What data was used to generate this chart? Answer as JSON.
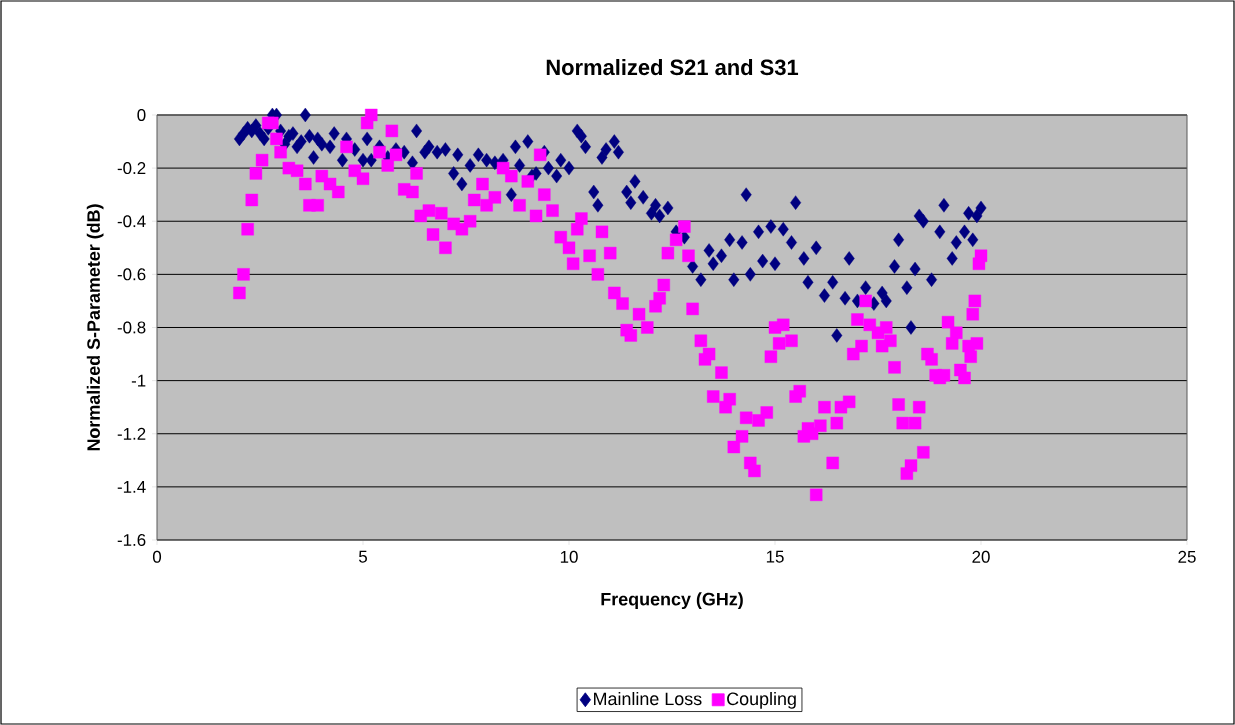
{
  "chart_data": {
    "type": "scatter",
    "title": "Normalized S21 and S31",
    "xlabel": "Frequency (GHz)",
    "ylabel": "Normalized S-Parameter (dB)",
    "xlim": [
      0,
      25
    ],
    "xticks": [
      0,
      5,
      10,
      15,
      20,
      25
    ],
    "ylim": [
      -1.6,
      0
    ],
    "yticks": [
      -1.6,
      -1.4,
      -1.2,
      -1,
      -0.8,
      -0.6,
      -0.4,
      -0.2,
      0
    ],
    "grid": "y",
    "legend": "bottom",
    "series": [
      {
        "name": "Mainline Loss",
        "color": "#000080",
        "marker": "diamond",
        "x": [
          2.0,
          2.1,
          2.2,
          2.3,
          2.4,
          2.5,
          2.6,
          2.7,
          2.8,
          2.9,
          3.0,
          3.1,
          3.2,
          3.3,
          3.4,
          3.5,
          3.6,
          3.7,
          3.8,
          3.9,
          4.0,
          4.2,
          4.3,
          4.5,
          4.6,
          4.8,
          5.0,
          5.1,
          5.2,
          5.4,
          5.6,
          5.8,
          6.0,
          6.2,
          6.3,
          6.5,
          6.6,
          6.8,
          7.0,
          7.2,
          7.3,
          7.4,
          7.6,
          7.8,
          8.0,
          8.2,
          8.4,
          8.6,
          8.7,
          8.8,
          9.0,
          9.1,
          9.2,
          9.4,
          9.5,
          9.7,
          9.8,
          10.0,
          10.2,
          10.3,
          10.4,
          10.6,
          10.7,
          10.8,
          10.9,
          11.1,
          11.2,
          11.4,
          11.5,
          11.6,
          11.8,
          12.0,
          12.1,
          12.2,
          12.4,
          12.6,
          12.8,
          13.0,
          13.2,
          13.4,
          13.5,
          13.7,
          13.9,
          14.0,
          14.2,
          14.3,
          14.4,
          14.6,
          14.7,
          14.9,
          15.0,
          15.2,
          15.4,
          15.5,
          15.7,
          15.8,
          16.0,
          16.2,
          16.4,
          16.5,
          16.7,
          16.8,
          17.0,
          17.2,
          17.4,
          17.6,
          17.7,
          17.9,
          18.0,
          18.2,
          18.3,
          18.4,
          18.5,
          18.6,
          18.8,
          19.0,
          19.1,
          19.3,
          19.4,
          19.6,
          19.7,
          19.8,
          19.9,
          20.0
        ],
        "values": [
          -0.09,
          -0.07,
          -0.05,
          -0.06,
          -0.04,
          -0.07,
          -0.09,
          -0.05,
          0.0,
          0.0,
          -0.06,
          -0.11,
          -0.08,
          -0.07,
          -0.12,
          -0.1,
          0.0,
          -0.08,
          -0.16,
          -0.09,
          -0.11,
          -0.12,
          -0.07,
          -0.17,
          -0.09,
          -0.13,
          -0.17,
          -0.09,
          -0.17,
          -0.12,
          -0.16,
          -0.13,
          -0.14,
          -0.18,
          -0.06,
          -0.14,
          -0.12,
          -0.14,
          -0.13,
          -0.22,
          -0.15,
          -0.26,
          -0.19,
          -0.15,
          -0.17,
          -0.18,
          -0.17,
          -0.3,
          -0.12,
          -0.19,
          -0.1,
          -0.23,
          -0.22,
          -0.14,
          -0.2,
          -0.23,
          -0.17,
          -0.2,
          -0.06,
          -0.08,
          -0.12,
          -0.29,
          -0.34,
          -0.16,
          -0.13,
          -0.1,
          -0.14,
          -0.29,
          -0.33,
          -0.25,
          -0.31,
          -0.37,
          -0.34,
          -0.38,
          -0.35,
          -0.44,
          -0.46,
          -0.57,
          -0.62,
          -0.51,
          -0.56,
          -0.53,
          -0.47,
          -0.62,
          -0.48,
          -0.3,
          -0.6,
          -0.44,
          -0.55,
          -0.42,
          -0.56,
          -0.43,
          -0.48,
          -0.33,
          -0.54,
          -0.63,
          -0.5,
          -0.68,
          -0.63,
          -0.83,
          -0.69,
          -0.54,
          -0.7,
          -0.65,
          -0.71,
          -0.67,
          -0.7,
          -0.57,
          -0.47,
          -0.65,
          -0.8,
          -0.58,
          -0.38,
          -0.4,
          -0.62,
          -0.44,
          -0.34,
          -0.54,
          -0.48,
          -0.44,
          -0.37,
          -0.47,
          -0.38,
          -0.35
        ]
      },
      {
        "name": "Coupling",
        "color": "#ff00ff",
        "marker": "square",
        "x": [
          2.0,
          2.1,
          2.2,
          2.3,
          2.4,
          2.55,
          2.7,
          2.8,
          2.9,
          3.0,
          3.2,
          3.4,
          3.6,
          3.7,
          3.9,
          4.0,
          4.2,
          4.4,
          4.6,
          4.8,
          5.0,
          5.1,
          5.2,
          5.4,
          5.6,
          5.7,
          5.8,
          6.0,
          6.2,
          6.3,
          6.4,
          6.6,
          6.7,
          6.9,
          7.0,
          7.2,
          7.4,
          7.6,
          7.7,
          7.9,
          8.0,
          8.2,
          8.4,
          8.6,
          8.8,
          9.0,
          9.2,
          9.3,
          9.4,
          9.6,
          9.8,
          10.0,
          10.1,
          10.2,
          10.3,
          10.5,
          10.7,
          10.8,
          11.0,
          11.1,
          11.3,
          11.4,
          11.5,
          11.7,
          11.9,
          12.1,
          12.2,
          12.3,
          12.4,
          12.6,
          12.8,
          12.9,
          13.0,
          13.2,
          13.3,
          13.4,
          13.5,
          13.7,
          13.8,
          13.9,
          14.0,
          14.2,
          14.3,
          14.4,
          14.5,
          14.6,
          14.8,
          14.9,
          15.0,
          15.1,
          15.2,
          15.4,
          15.5,
          15.6,
          15.7,
          15.8,
          15.9,
          16.0,
          16.1,
          16.2,
          16.4,
          16.5,
          16.6,
          16.8,
          16.9,
          17.0,
          17.1,
          17.2,
          17.3,
          17.5,
          17.6,
          17.7,
          17.8,
          17.9,
          18.0,
          18.1,
          18.2,
          18.3,
          18.4,
          18.5,
          18.6,
          18.7,
          18.8,
          18.9,
          19.0,
          19.1,
          19.2,
          19.3,
          19.4,
          19.5,
          19.6,
          19.7,
          19.75,
          19.8,
          19.85,
          19.9,
          19.95,
          20.0
        ],
        "values": [
          -0.67,
          -0.6,
          -0.43,
          -0.32,
          -0.22,
          -0.17,
          -0.03,
          -0.03,
          -0.09,
          -0.14,
          -0.2,
          -0.21,
          -0.26,
          -0.34,
          -0.34,
          -0.23,
          -0.26,
          -0.29,
          -0.12,
          -0.21,
          -0.24,
          -0.03,
          0.0,
          -0.14,
          -0.19,
          -0.06,
          -0.15,
          -0.28,
          -0.29,
          -0.22,
          -0.38,
          -0.36,
          -0.45,
          -0.37,
          -0.5,
          -0.41,
          -0.43,
          -0.4,
          -0.32,
          -0.26,
          -0.34,
          -0.31,
          -0.2,
          -0.23,
          -0.34,
          -0.25,
          -0.38,
          -0.15,
          -0.3,
          -0.36,
          -0.46,
          -0.5,
          -0.56,
          -0.43,
          -0.39,
          -0.53,
          -0.6,
          -0.44,
          -0.52,
          -0.67,
          -0.71,
          -0.81,
          -0.83,
          -0.75,
          -0.8,
          -0.72,
          -0.69,
          -0.64,
          -0.52,
          -0.47,
          -0.42,
          -0.53,
          -0.73,
          -0.85,
          -0.92,
          -0.9,
          -1.06,
          -0.97,
          -1.1,
          -1.07,
          -1.25,
          -1.21,
          -1.14,
          -1.31,
          -1.34,
          -1.15,
          -1.12,
          -0.91,
          -0.8,
          -0.86,
          -0.79,
          -0.85,
          -1.06,
          -1.04,
          -1.21,
          -1.18,
          -1.2,
          -1.43,
          -1.17,
          -1.1,
          -1.31,
          -1.16,
          -1.1,
          -1.08,
          -0.9,
          -0.77,
          -0.87,
          -0.7,
          -0.79,
          -0.82,
          -0.87,
          -0.8,
          -0.85,
          -0.95,
          -1.09,
          -1.16,
          -1.35,
          -1.32,
          -1.16,
          -1.1,
          -1.27,
          -0.9,
          -0.92,
          -0.98,
          -0.99,
          -0.98,
          -0.78,
          -0.86,
          -0.82,
          -0.96,
          -0.99,
          -0.87,
          -0.91,
          -0.75,
          -0.7,
          -0.86,
          -0.56,
          -0.53
        ]
      }
    ]
  }
}
